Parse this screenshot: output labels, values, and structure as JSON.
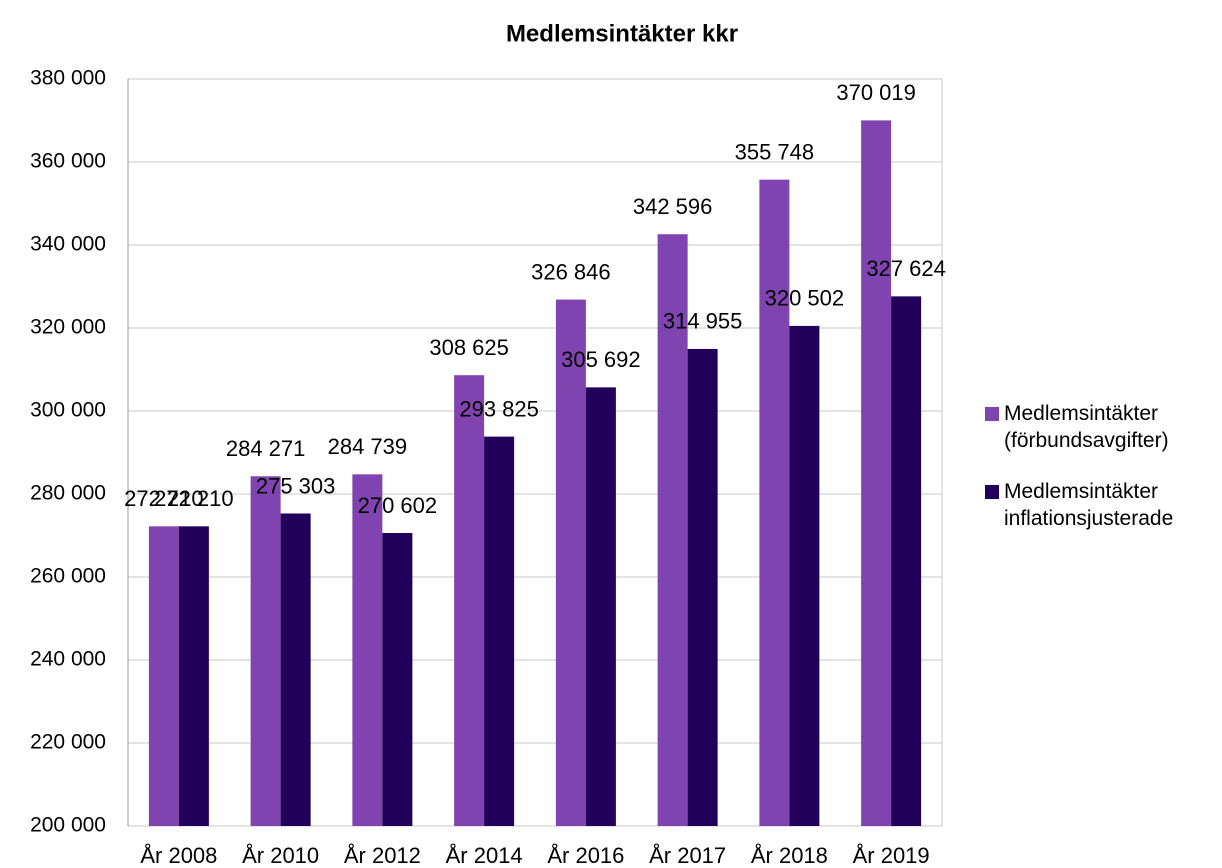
{
  "chart_data": {
    "type": "bar",
    "title": "Medlemsintäkter kkr",
    "categories": [
      "År 2008",
      "År 2010",
      "År 2012",
      "År 2014",
      "År 2016",
      "År 2017",
      "År 2018",
      "År 2019"
    ],
    "series": [
      {
        "name": "Medlemsintäkter (förbundsavgifter)",
        "color": "#8044b0",
        "values": [
          272210,
          284271,
          284739,
          308625,
          326846,
          342596,
          355748,
          370019
        ],
        "value_labels": [
          "272 210",
          "284 271",
          "284 739",
          "308 625",
          "326 846",
          "342 596",
          "355 748",
          "370 019"
        ]
      },
      {
        "name": "Medlemsintäkter inflationsjusterade",
        "color": "#20005a",
        "values": [
          272210,
          275303,
          270602,
          293825,
          305692,
          314955,
          320502,
          327624
        ],
        "value_labels": [
          "272 210",
          "275 303",
          "270 602",
          "293 825",
          "305 692",
          "314 955",
          "320 502",
          "327 624"
        ]
      }
    ],
    "ylim": [
      200000,
      380000
    ],
    "yticks": [
      {
        "value": 200000,
        "label": "200 000"
      },
      {
        "value": 220000,
        "label": "220 000"
      },
      {
        "value": 240000,
        "label": "240 000"
      },
      {
        "value": 260000,
        "label": "260 000"
      },
      {
        "value": 280000,
        "label": "280 000"
      },
      {
        "value": 300000,
        "label": "300 000"
      },
      {
        "value": 320000,
        "label": "320 000"
      },
      {
        "value": 340000,
        "label": "340 000"
      },
      {
        "value": 360000,
        "label": "360 000"
      },
      {
        "value": 380000,
        "label": "380 000"
      }
    ],
    "grid": true,
    "legend": "right"
  }
}
